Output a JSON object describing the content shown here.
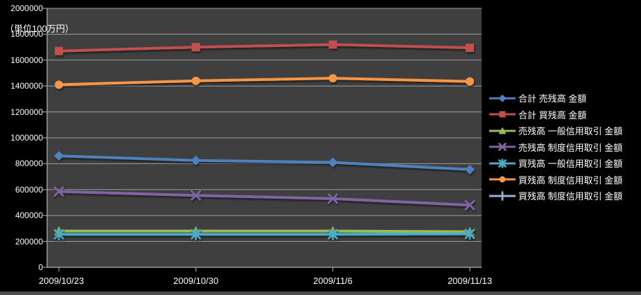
{
  "chart_data": {
    "type": "line",
    "unit_label": "（単位100万円）",
    "categories": [
      "2009/10/23",
      "2009/10/30",
      "2009/11/6",
      "2009/11/13"
    ],
    "series": [
      {
        "name": "合計 売残高 金額",
        "color": "#4F81BD",
        "marker": "diamond",
        "values": [
          860000,
          825000,
          810000,
          755000
        ]
      },
      {
        "name": "合計 買残高 金額",
        "color": "#C0504D",
        "marker": "square",
        "values": [
          1670000,
          1700000,
          1720000,
          1695000
        ]
      },
      {
        "name": "売残高 一般信用取引 金額",
        "color": "#9BBB59",
        "marker": "triangle",
        "values": [
          280000,
          280000,
          280000,
          275000
        ]
      },
      {
        "name": "売残高 制度信用取引 金額",
        "color": "#8064A2",
        "marker": "x",
        "values": [
          585000,
          555000,
          530000,
          480000
        ]
      },
      {
        "name": "買残高 一般信用取引 金額",
        "color": "#4BACC6",
        "marker": "asterisk",
        "values": [
          255000,
          255000,
          255000,
          258000
        ]
      },
      {
        "name": "買残高 制度信用取引 金額",
        "color": "#F79646",
        "marker": "circle",
        "values": [
          1410000,
          1440000,
          1460000,
          1435000
        ]
      },
      {
        "name": "買残高 制度信用取引 金額",
        "color": "#95B3D7",
        "marker": "plus",
        "values": [
          null,
          null,
          null,
          null
        ]
      }
    ],
    "ylim": [
      0,
      2000000
    ],
    "y_tick_step": 200000,
    "y_ticks": [
      "0",
      "200000",
      "400000",
      "600000",
      "800000",
      "1000000",
      "1200000",
      "1400000",
      "1600000",
      "1800000",
      "2000000"
    ],
    "grid": true,
    "legend_position": "right",
    "colors": {
      "background": "#000000",
      "plot_background": "#3F3F3F",
      "gridline": "#9E9E9E",
      "axis": "#9E9E9E",
      "text": "#FFFFFF",
      "frame_edge": "#4D4D4D"
    }
  }
}
